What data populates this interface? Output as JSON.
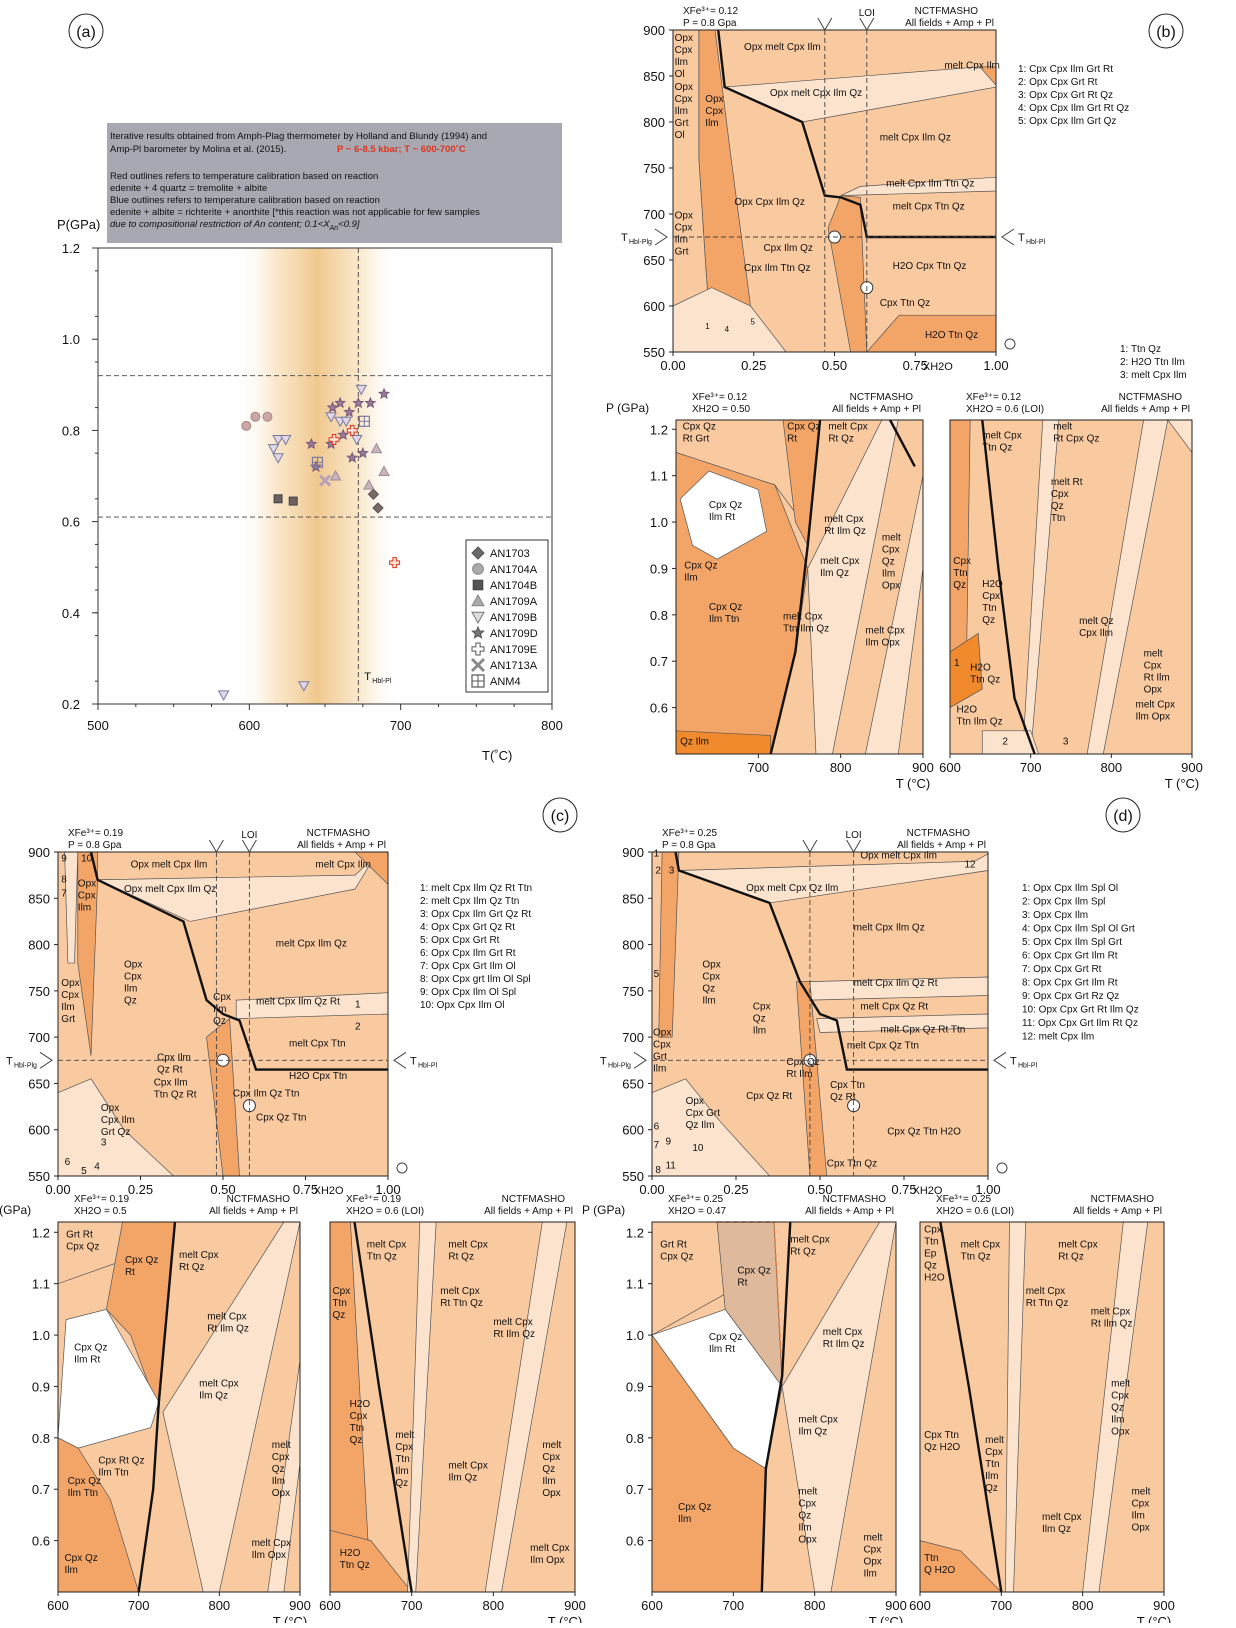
{
  "panels": {
    "a": "(a)",
    "b": "(b)",
    "c": "(c)",
    "d": "(d)"
  },
  "panel_a": {
    "info_line1": "Iterative results obtained from Amph-Plag thermometer by Holland and Blundy (1994) and",
    "info_line2": "Amp-Pl barometer by Molina et al. (2015).",
    "info_highlight": "P ~ 6-8.5 kbar; T ~ 600-700˚C",
    "info_line3": "Red outlines refers to temperature calibration based on reaction",
    "info_line4": "edenite + 4 quartz = tremolite + albite",
    "info_line5": "Blue outlines refers to temperature calibration based on reaction",
    "info_line6": "edenite + albite = richterite + anorthite [*this reaction was not applicable for few samples",
    "info_line7": "due to compositional restriction of An content; 0.1<X",
    "info_line7_sub": "An",
    "info_line7_end": "<0.9]",
    "ylabel": "P(GPa)",
    "xlabel": "T(˚C)",
    "xticks": [
      "500",
      "600",
      "700",
      "800"
    ],
    "yticks": [
      "1.2",
      "1.0",
      "0.8",
      "0.6",
      "0.4",
      "0.2"
    ],
    "t_label": "T",
    "t_sub": "Hbl-Pl",
    "legend": [
      "AN1703",
      "AN1704A",
      "AN1704B",
      "AN1709A",
      "AN1709B",
      "AN1709D",
      "AN1709E",
      "AN1713A",
      "ANM4"
    ]
  },
  "chart_data": {
    "type": "scatter",
    "xlabel": "T(˚C)",
    "ylabel": "P(GPa)",
    "xlim": [
      500,
      800
    ],
    "ylim": [
      0.2,
      1.2
    ],
    "reference_lines": {
      "T": 672,
      "P_low": 0.61,
      "P_high": 0.92
    },
    "series": [
      {
        "name": "AN1703",
        "marker": "diamond",
        "points": [
          [
            682,
            0.66
          ],
          [
            685,
            0.63
          ]
        ]
      },
      {
        "name": "AN1704A",
        "marker": "circle",
        "points": [
          [
            598,
            0.81
          ],
          [
            604,
            0.83
          ],
          [
            612,
            0.83
          ]
        ]
      },
      {
        "name": "AN1704B",
        "marker": "square",
        "points": [
          [
            619,
            0.65
          ],
          [
            629,
            0.645
          ]
        ]
      },
      {
        "name": "AN1709A",
        "marker": "triangle",
        "points": [
          [
            684,
            0.76
          ],
          [
            689,
            0.71
          ],
          [
            679,
            0.68
          ],
          [
            657,
            0.7
          ]
        ]
      },
      {
        "name": "AN1709B",
        "marker": "triangle-down",
        "points": [
          [
            616,
            0.76
          ],
          [
            619,
            0.78
          ],
          [
            624,
            0.78
          ],
          [
            619,
            0.74
          ],
          [
            654,
            0.83
          ],
          [
            660,
            0.82
          ],
          [
            664,
            0.82
          ],
          [
            671,
            0.78
          ],
          [
            674,
            0.89
          ],
          [
            583,
            0.22
          ],
          [
            636,
            0.24
          ]
        ]
      },
      {
        "name": "AN1709D",
        "marker": "star",
        "points": [
          [
            641,
            0.77
          ],
          [
            644,
            0.72
          ],
          [
            655,
            0.85
          ],
          [
            660,
            0.86
          ],
          [
            666,
            0.84
          ],
          [
            672,
            0.86
          ],
          [
            680,
            0.86
          ],
          [
            689,
            0.88
          ],
          [
            662,
            0.79
          ],
          [
            668,
            0.74
          ],
          [
            675,
            0.75
          ],
          [
            654,
            0.77
          ]
        ]
      },
      {
        "name": "AN1709E",
        "marker": "plus",
        "points": [
          [
            656,
            0.78
          ],
          [
            668,
            0.8
          ],
          [
            696,
            0.51
          ]
        ]
      },
      {
        "name": "AN1713A",
        "marker": "cross",
        "points": [
          [
            650,
            0.69
          ]
        ]
      },
      {
        "name": "ANM4",
        "marker": "box-plus",
        "points": [
          [
            645,
            0.73
          ],
          [
            676,
            0.82
          ]
        ]
      }
    ]
  },
  "panel_b_top": {
    "header1": "XFe³⁺= 0.12",
    "header2": "P = 0.8 Gpa",
    "system": "NCTFMASHO",
    "fields": "All fields + Amp + Pl",
    "loi": "LOI",
    "yticks": [
      "900",
      "850",
      "800",
      "750",
      "700",
      "650",
      "600",
      "550"
    ],
    "xticks": [
      "0.00",
      "0.25",
      "0.50",
      "0.75",
      "1.00"
    ],
    "xlabel": "XH2O",
    "t_label_l": "T",
    "t_sub_l": "Hbl-Plg",
    "t_label_r": "T",
    "t_sub_r": "Hbl-Pl",
    "labels": {
      "f1": "Opx melt Cpx Ilm",
      "f2": "Opx melt Cpx Ilm Qz",
      "f3": "melt Cpx Ilm",
      "f4": "melt Cpx Ilm Qz",
      "f5": "melt Cpx Ilm Ttn Qz",
      "f6": "melt Cpx Ttn Qz",
      "f7": "Opx Cpx Ilm Qz",
      "f8": "Cpx Ilm Qz",
      "f9": "Cpx Ilm Ttn Qz",
      "f10": "H2O Cpx Ttn Qz",
      "f11": "Cpx Ttn Qz",
      "f12": "H2O Ttn Qz",
      "n1": "1",
      "n4": "4",
      "n5": "5"
    },
    "side_list": [
      "1: Cpx  Cpx Ilm Grt Rt",
      "2: Opx  Cpx Grt Rt",
      "3: Opx  Cpx Grt Rt Qz",
      "4: Opx  Cpx Ilm Grt Rt Qz",
      "5: Opx  Cpx Ilm Grt Qz"
    ]
  },
  "panel_b_bottom": {
    "ylabel": "P (GPa)",
    "xlabel": "T (°C)",
    "left_header1": "XFe³⁺= 0.12",
    "left_header2": "XH2O = 0.50",
    "right_header1": "XFe³⁺= 0.12",
    "right_header2": "XH2O = 0.6 (LOI)",
    "system": "NCTFMASHO",
    "fields": "All fields + Amp + Pl",
    "yticks": [
      "1.2",
      "1.1",
      "1.0",
      "0.9",
      "0.8",
      "0.7",
      "0.6"
    ],
    "xticks_left": [
      "700",
      "800",
      "900"
    ],
    "xticks_right": [
      "600",
      "700",
      "800",
      "900"
    ],
    "side_list": [
      "1: Ttn Qz",
      "2: H2O Ttn Ilm",
      "3: melt Cpx Ilm"
    ]
  },
  "panel_c_top": {
    "header1": "XFe³⁺= 0.19",
    "header2": "P = 0.8 Gpa",
    "system": "NCTFMASHO",
    "fields": "All fields + Amp + Pl",
    "loi": "LOI",
    "yticks": [
      "900",
      "850",
      "800",
      "750",
      "700",
      "650",
      "600",
      "550"
    ],
    "xticks": [
      "0.00",
      "0.25",
      "0.50",
      "0.75",
      "1.00"
    ],
    "xlabel": "XH2O",
    "t_label_l": "T",
    "t_sub_l": "Hbl-Plg",
    "t_label_r": "T",
    "t_sub_r": "Hbl-Pl",
    "side_list": [
      "1: melt Cpx Ilm Qz Rt Ttn",
      "2: melt Cpx Ilm Qz Ttn",
      "3: Opx Cpx Ilm Grt Qz Rt",
      "4: Opx Cpx Grt Qz Rt",
      "5: Opx Cpx Grt Rt",
      "6: Opx Cpx Ilm Grt Rt",
      "7: Opx Cpx Grt Ilm Ol",
      "8: Opx Cpx grt Ilm Ol Spl",
      "9: Opx Cpx Ilm Ol Spl",
      "10: Opx Cpx Ilm Ol"
    ]
  },
  "panel_c_bottom": {
    "ylabel": "P (GPa)",
    "xlabel": "T (°C)",
    "left_header1": "XFe³⁺= 0.19",
    "left_header2": "XH2O = 0.5",
    "right_header1": "XFe³⁺= 0.19",
    "right_header2": "XH2O = 0.6 (LOI)",
    "system": "NCTFMASHO",
    "fields": "All fields + Amp + Pl",
    "yticks": [
      "1.2",
      "1.1",
      "1.0",
      "0.9",
      "0.8",
      "0.7",
      "0.6"
    ],
    "xticks_left": [
      "600",
      "700",
      "800",
      "900"
    ],
    "xticks_right": [
      "600",
      "700",
      "800",
      "900"
    ]
  },
  "panel_d_top": {
    "header1": "XFe³⁺= 0.25",
    "header2": "P = 0.8 Gpa",
    "system": "NCTFMASHO",
    "fields": "All fields + Amp + Pl",
    "loi": "LOI",
    "yticks": [
      "900",
      "850",
      "800",
      "750",
      "700",
      "650",
      "600",
      "550"
    ],
    "xticks": [
      "0.00",
      "0.25",
      "0.50",
      "0.75",
      "1.00"
    ],
    "xlabel": "XH2O",
    "t_label_l": "T",
    "t_sub_l": "Hbl-Plg",
    "t_label_r": "T",
    "t_sub_r": "Hbl-Pl",
    "side_list": [
      "1: Opx Cpx Ilm Spl Ol",
      "2: Opx Cpx Ilm Spl",
      "3: Opx Cpx Ilm",
      "4: Opx Cpx Ilm Spl Ol Grt",
      "5: Opx Cpx Ilm Spl Grt",
      "6: Opx Cpx Grt Ilm Rt",
      "7: Opx Cpx Grt Rt",
      "8: Opx Cpx Grt Ilm Rt",
      "9: Opx Cpx Grt Rz Qz",
      "10: Opx Cpx Grt Rt Ilm Qz",
      "11: Opx Cpx Grt Ilm Rt  Qz",
      "12: melt Cpx Ilm"
    ]
  },
  "panel_d_bottom": {
    "ylabel": "P (GPa)",
    "xlabel": "T (°C)",
    "left_header1": "XFe³⁺= 0.25",
    "left_header2": "XH2O = 0.47",
    "right_header1": "XFe³⁺= 0.25",
    "right_header2": "XH2O = 0.6 (LOI)",
    "system": "NCTFMASHO",
    "fields": "All fields + Amp + Pl",
    "yticks": [
      "1.2",
      "1.1",
      "1.0",
      "0.9",
      "0.8",
      "0.7",
      "0.6"
    ],
    "xticks_left": [
      "600",
      "700",
      "800",
      "900"
    ],
    "xticks_right": [
      "600",
      "700",
      "800",
      "900"
    ]
  },
  "field_labels": {
    "b_top": [
      [
        "Opx",
        "Cpx",
        "Ilm",
        "Ol"
      ],
      [
        "Opx",
        "Cpx",
        "Ilm",
        "Grt",
        "Ol"
      ],
      [
        "Opx",
        "Cpx",
        "Ilm"
      ],
      [
        "Opx",
        "Cpx",
        "Ilm",
        "Grt"
      ]
    ],
    "b_bl": [
      "Cpx Qz",
      "Rt Grt",
      "Cpx Qz",
      "Rt",
      "melt Cpx",
      "Rt Qz",
      "Cpx Qz",
      "Ilm Rt",
      "melt Cpx",
      "Rt Ilm Qz",
      "Cpx Qz",
      "Ilm",
      "melt Cpx",
      "Ilm Qz",
      "melt",
      "Cpx",
      "Qz",
      "Ilm",
      "Opx",
      "Cpx Qz",
      "Ilm Ttn",
      "melt Cpx",
      "Ttn Ilm Qz",
      "melt Cpx",
      "Ilm Opx",
      "Qz Ilm"
    ],
    "b_br": [
      "melt",
      "Rt Cpx Qz",
      "melt Cpx",
      "Ttn Qz",
      "melt Rt",
      "Cpx",
      "Qz",
      "Ttn",
      "Cpx",
      "Ttn",
      "Qz",
      "H2O",
      "Cpx",
      "Ttn",
      "Qz",
      "melt Qz",
      "Cpx Ilm",
      "melt",
      "Cpx",
      "Rt Ilm",
      "Opx",
      "1",
      "H2O",
      "Ttn Qz",
      "H2O",
      "Ttn Ilm Qz",
      "2",
      "3",
      "melt Cpx",
      "Ilm Opx"
    ],
    "c_top": [
      "Opx melt Cpx Ilm",
      "Opx melt Cpx Ilm  Qz",
      "melt Cpx Ilm",
      "melt Cpx Ilm Qz",
      "Opx",
      "Cpx",
      "Ilm",
      "Qz",
      "Opx",
      "Cpx",
      "Ilm",
      "Grt",
      "melt Cpx Ilm Qz Rt",
      "1",
      "2",
      "melt Cpx Ttn",
      "Cpx",
      "Ilm",
      "Qz",
      "Cpx Ilm",
      "Qz Rt",
      "Cpx Ilm",
      "Ttn Qz Rt",
      "Cpx Ilm Qz Ttn",
      "Cpx Qz Ttn",
      "H2O Cpx Ttn",
      "Opx",
      "Cpx Ilm",
      "Grt Qz",
      "3",
      "4",
      "5",
      "6",
      "7",
      "8",
      "9",
      "10",
      "Opx",
      "Cpx",
      "Ilm"
    ],
    "c_bl": [
      "Grt Rt",
      "Cpx  Qz",
      "Cpx Qz",
      "Rt",
      "melt Cpx",
      "Rt Qz",
      "Cpx Qz",
      "Ilm Rt",
      "melt Cpx",
      "Rt Ilm Qz",
      "melt Cpx",
      "Ilm Qz",
      "Cpx Rt Qz",
      "Ilm Ttn",
      "Cpx Qz",
      "Ilm Ttn",
      "melt",
      "Cpx",
      "Qz",
      "Ilm",
      "Opx",
      "melt Cpx",
      "Ilm Opx",
      "Cpx Qz",
      "Ilm"
    ],
    "c_br": [
      "melt Cpx",
      "Ttn Qz",
      "melt Cpx",
      "Rt Qz",
      "melt Cpx",
      "Rt Ttn Qz",
      "melt Cpx",
      "Rt Ilm Qz",
      "Cpx",
      "Ttn",
      "Qz",
      "H2O",
      "Cpx",
      "Ttn",
      "Qz",
      "melt",
      "Cpx",
      "Ttn",
      "Ilm",
      "Qz",
      "melt Cpx",
      "Ilm Qz",
      "melt",
      "Cpx",
      "Qz",
      "Ilm",
      "Opx",
      "melt Cpx",
      "Ilm Opx",
      "H2O",
      "Ttn Qz"
    ],
    "d_top": [
      "Opx melt Cpx Ilm",
      "Opx melt Cpx Qz Ilm",
      "melt Cpx Ilm Qz",
      "Opx",
      "Cpx",
      "Qz",
      "Ilm",
      "Cpx",
      "Qz",
      "Ilm",
      "melt Cpx Ilm Qz Rt",
      "melt Cpx Qz Rt",
      "melt Cpx Qz Rt Ttn",
      "melt Cpx Qz Ttn",
      "Cpx Qz",
      "Rt Ilm",
      "Cpx Qz Rt",
      "Cpx Ttn",
      "Qz Rt",
      "Cpx Qz Ttn H2O",
      "Cpx Ttn Qz",
      "Opx",
      "Cpx Grt",
      "Qz Ilm",
      "Opx",
      "Cpx",
      "Grt",
      "Ilm",
      "1",
      "2",
      "3",
      "5",
      "6",
      "7",
      "8",
      "9",
      "10",
      "11",
      "12"
    ],
    "d_bl": [
      "Grt Rt",
      "Cpx  Qz",
      "Cpx Qz",
      "Rt",
      "melt Cpx",
      "Rt Qz",
      "Cpx Qz",
      "Ilm Rt",
      "melt Cpx",
      "Rt Ilm Qz",
      "melt Cpx",
      "Ilm Qz",
      "melt",
      "Cpx",
      "Qz",
      "Ilm",
      "Opx",
      "melt",
      "Cpx",
      "Opx",
      "Ilm",
      "Cpx Qz",
      "Ilm"
    ],
    "d_br": [
      "Cpx",
      "Ttn",
      "Ep",
      "Qz",
      "H2O",
      "melt Cpx",
      "Ttn Qz",
      "melt Cpx",
      "Rt Qz",
      "melt Cpx",
      "Rt Ttn Qz",
      "melt Cpx",
      "Rt Ilm Qz",
      "Cpx Ttn",
      "Qz H2O",
      "melt",
      "Cpx",
      "Ttn",
      "Ilm",
      "Qz",
      "melt Cpx",
      "Ilm Qz",
      "melt",
      "Cpx",
      "Qz",
      "Ilm",
      "Opx",
      "melt",
      "Cpx",
      "Ilm",
      "Opx",
      "Ttn",
      "Q H2O"
    ]
  },
  "colors": {
    "light": "#fbe3cd",
    "medium": "#f9c9a0",
    "dark": "#f3a568",
    "orange": "#f08a2c",
    "white": "#ffffff",
    "brown": "#deb99b",
    "infobox": "#a8a8b3",
    "highlight": "#e0341c",
    "band": "#f2c98e"
  }
}
